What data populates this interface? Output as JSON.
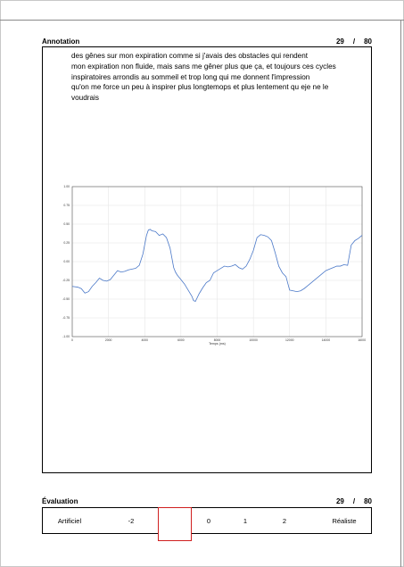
{
  "annotation": {
    "title": "Annotation",
    "page_current": "29",
    "page_separator": "/",
    "page_total": "80",
    "text": "des gênes sur mon expiration comme si j'avais des obstacles qui rendent\nmon expiration non fluide, mais sans me gêner plus que ça, et toujours ces cycles\ninspiratoires arrondis au sommeil et trop long qui me donnent l'impression\nqu'on me force un peu à inspirer plus longtemops et plus lentement qu eje ne le\nvoudrais"
  },
  "chart_data": {
    "type": "line",
    "xlabel": "Temps (ms)",
    "ylabel": "",
    "xlim": [
      0,
      16000
    ],
    "ylim": [
      -1.0,
      1.0
    ],
    "xticks": [
      "0",
      "2000",
      "4000",
      "6000",
      "8000",
      "10000",
      "12000",
      "14000",
      "16000"
    ],
    "yticks": [
      "1.00",
      "0.75",
      "0.50",
      "0.25",
      "0.00",
      "-0.25",
      "-0.50",
      "-0.75",
      "-1.00"
    ],
    "grid": true,
    "series": [
      {
        "color": "#4a78c8",
        "x": [
          0,
          300,
          500,
          700,
          900,
          1100,
          1300,
          1500,
          1700,
          1900,
          2100,
          2300,
          2500,
          2700,
          2900,
          3100,
          3300,
          3500,
          3700,
          3900,
          4100,
          4200,
          4300,
          4400,
          4600,
          4800,
          5000,
          5200,
          5400,
          5500,
          5600,
          5700,
          5800,
          6000,
          6200,
          6400,
          6600,
          6700,
          6800,
          7000,
          7200,
          7400,
          7600,
          7800,
          8000,
          8200,
          8400,
          8600,
          8800,
          9000,
          9200,
          9400,
          9600,
          9800,
          10000,
          10200,
          10400,
          10600,
          10800,
          11000,
          11200,
          11400,
          11600,
          11800,
          12000,
          12200,
          12400,
          12600,
          12800,
          13000,
          13200,
          13400,
          13600,
          13800,
          14000,
          14200,
          14400,
          14600,
          14800,
          15000,
          15200,
          15400,
          15600,
          15800,
          16000
        ],
        "y": [
          -0.33,
          -0.34,
          -0.36,
          -0.42,
          -0.4,
          -0.33,
          -0.28,
          -0.22,
          -0.25,
          -0.26,
          -0.24,
          -0.18,
          -0.12,
          -0.14,
          -0.13,
          -0.11,
          -0.1,
          -0.09,
          -0.05,
          0.1,
          0.35,
          0.42,
          0.43,
          0.41,
          0.4,
          0.35,
          0.37,
          0.32,
          0.18,
          0.05,
          -0.08,
          -0.14,
          -0.18,
          -0.24,
          -0.3,
          -0.38,
          -0.46,
          -0.52,
          -0.53,
          -0.43,
          -0.35,
          -0.28,
          -0.25,
          -0.15,
          -0.12,
          -0.09,
          -0.06,
          -0.07,
          -0.06,
          -0.04,
          -0.08,
          -0.1,
          -0.06,
          0.03,
          0.15,
          0.32,
          0.36,
          0.35,
          0.33,
          0.28,
          0.12,
          -0.06,
          -0.15,
          -0.2,
          -0.38,
          -0.39,
          -0.4,
          -0.39,
          -0.36,
          -0.32,
          -0.28,
          -0.24,
          -0.2,
          -0.16,
          -0.12,
          -0.1,
          -0.08,
          -0.06,
          -0.06,
          -0.04,
          -0.05,
          0.22,
          0.28,
          0.31,
          0.35
        ]
      }
    ]
  },
  "evaluation": {
    "title": "Évaluation",
    "page_current": "29",
    "page_separator": "/",
    "page_total": "80",
    "left_label": "Artificiel",
    "right_label": "Réaliste",
    "scale": [
      "-2",
      "0",
      "1",
      "2"
    ]
  }
}
